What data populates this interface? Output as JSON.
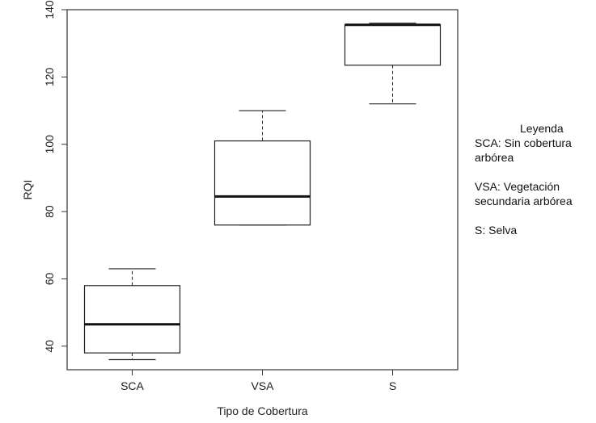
{
  "chart_data": {
    "type": "boxplot",
    "title": "",
    "xlabel": "Tipo de Cobertura",
    "ylabel": "RQI",
    "ylim": [
      33,
      140
    ],
    "yticks": [
      40,
      60,
      80,
      100,
      120,
      140
    ],
    "categories": [
      "SCA",
      "VSA",
      "S"
    ],
    "boxes": [
      {
        "category": "SCA",
        "min": 36,
        "q1": 38,
        "median": 46.5,
        "q3": 58,
        "max": 63
      },
      {
        "category": "VSA",
        "min": 76,
        "q1": 76,
        "median": 84.5,
        "q3": 101,
        "max": 110
      },
      {
        "category": "S",
        "min": 112,
        "q1": 123.5,
        "median": 135.5,
        "q3": 135.5,
        "max": 136
      }
    ],
    "grid": false
  },
  "legend": {
    "title": "Leyenda",
    "entries": [
      "SCA: Sin cobertura arbórea",
      "VSA: Vegetación secundaria arbórea",
      "S: Selva"
    ]
  },
  "colors": {
    "axis": "#333333",
    "box_fill": "#ffffff",
    "box_stroke": "#222222",
    "median": "#111111",
    "text": "#222222"
  }
}
